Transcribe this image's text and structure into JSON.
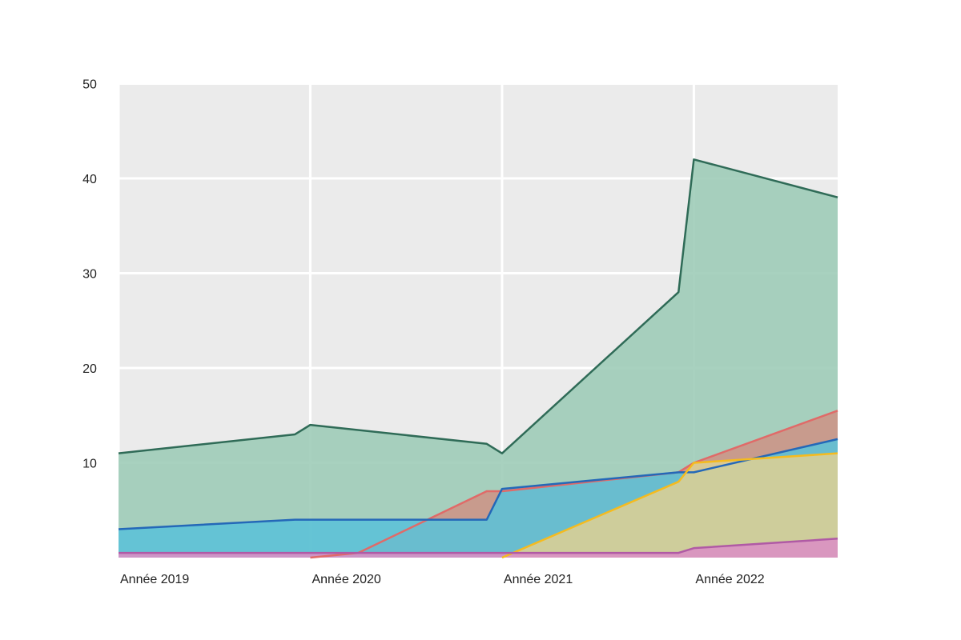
{
  "chart_data": {
    "type": "area",
    "x_ticks": [
      {
        "label": "Année 2019",
        "x": 2019.0
      },
      {
        "label": "Année 2020",
        "x": 2020.0
      },
      {
        "label": "Année 2021",
        "x": 2021.0
      },
      {
        "label": "Année 2022",
        "x": 2022.0
      }
    ],
    "y_ticks": [
      10,
      20,
      30,
      40,
      50
    ],
    "xlim": [
      2019.0,
      2022.75
    ],
    "ylim": [
      0,
      50
    ],
    "grid": true,
    "legend": "none",
    "overlap_order": [
      "green",
      "red",
      "blue",
      "yellow",
      "pink"
    ],
    "series": [
      {
        "color_fill": "#9ccbb6",
        "color_line": "#2f6b57",
        "points": [
          [
            2019.0,
            11
          ],
          [
            2019.92,
            13
          ],
          [
            2020.0,
            14
          ],
          [
            2020.92,
            12
          ],
          [
            2021.0,
            11
          ],
          [
            2021.92,
            28
          ],
          [
            2022.0,
            42
          ],
          [
            2022.75,
            38
          ]
        ]
      },
      {
        "color_fill": "#cd9486",
        "color_line": "#e06a68",
        "points": [
          [
            2020.0,
            0
          ],
          [
            2020.25,
            0.5
          ],
          [
            2020.92,
            7
          ],
          [
            2021.0,
            7
          ],
          [
            2021.92,
            9
          ],
          [
            2022.0,
            10
          ],
          [
            2022.75,
            15.5
          ]
        ]
      },
      {
        "color_fill": "#5bc1d8",
        "color_line": "#2468b8",
        "points": [
          [
            2019.0,
            3
          ],
          [
            2019.92,
            4
          ],
          [
            2020.0,
            4
          ],
          [
            2020.92,
            4
          ],
          [
            2021.0,
            7.25
          ],
          [
            2021.92,
            9
          ],
          [
            2022.0,
            9
          ],
          [
            2022.75,
            12.5
          ]
        ]
      },
      {
        "color_fill": "#dccf94",
        "color_line": "#f5bb1e",
        "points": [
          [
            2021.0,
            0
          ],
          [
            2021.92,
            8
          ],
          [
            2022.0,
            10
          ],
          [
            2022.75,
            11
          ]
        ]
      },
      {
        "color_fill": "#db90c4",
        "color_line": "#b05aa5",
        "points": [
          [
            2019.0,
            0.5
          ],
          [
            2021.92,
            0.5
          ],
          [
            2022.0,
            1
          ],
          [
            2022.75,
            2
          ]
        ]
      }
    ]
  }
}
